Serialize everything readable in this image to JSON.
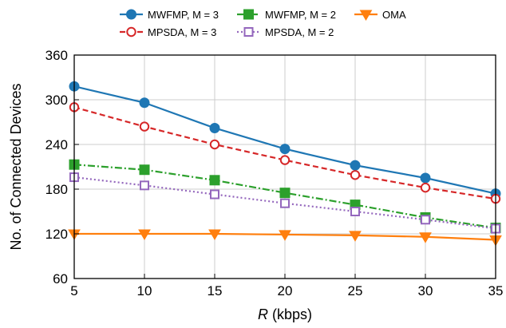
{
  "chart_data": {
    "type": "line",
    "title": "",
    "xlabel_symbol": "R",
    "xlabel_unit": " (kbps)",
    "ylabel": "No. of Connected Devices",
    "x": [
      5,
      10,
      15,
      20,
      25,
      30,
      35
    ],
    "xticks": [
      "5",
      "10",
      "15",
      "20",
      "25",
      "30",
      "35"
    ],
    "yticks": [
      "60",
      "120",
      "180",
      "240",
      "300",
      "360"
    ],
    "xlim": [
      5,
      35
    ],
    "ylim": [
      60,
      360
    ],
    "grid": true,
    "legend_position": "top",
    "series": [
      {
        "name": "MWFMP, M = 3",
        "color": "#1f77b4",
        "linestyle": "solid",
        "marker": "circle-filled",
        "values": [
          318,
          296,
          262,
          234,
          212,
          195,
          174
        ]
      },
      {
        "name": "MPSDA, M = 3",
        "color": "#d62728",
        "linestyle": "dashed",
        "marker": "circle-open",
        "values": [
          290,
          264,
          240,
          219,
          199,
          182,
          167
        ]
      },
      {
        "name": "MWFMP, M = 2",
        "color": "#2ca02c",
        "linestyle": "dashdot",
        "marker": "square-filled",
        "values": [
          213,
          206,
          192,
          175,
          159,
          142,
          128
        ]
      },
      {
        "name": "MPSDA, M = 2",
        "color": "#9467bd",
        "linestyle": "dotted",
        "marker": "square-open",
        "values": [
          196,
          185,
          173,
          161,
          150,
          139,
          127
        ]
      },
      {
        "name": "OMA",
        "color": "#ff7f0e",
        "linestyle": "solid",
        "marker": "triangle-down",
        "values": [
          120,
          120,
          120,
          119,
          118,
          116,
          112
        ]
      }
    ]
  }
}
